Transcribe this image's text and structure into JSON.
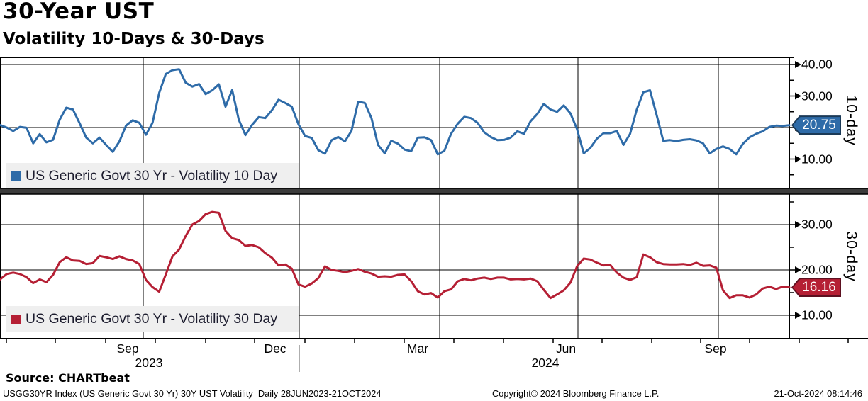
{
  "header": {
    "title": "30-Year UST",
    "subtitle": "Volatility 10-Days & 30-Days"
  },
  "top_panel": {
    "axis_label": "10-day",
    "legend_label": "US Generic Govt 30 Yr - Volatility 10 Day",
    "last_value_label": "20.75",
    "ytick_labels": [
      "40.00",
      "30.00",
      "10.00"
    ]
  },
  "bottom_panel": {
    "axis_label": "30-day",
    "legend_label": "US Generic Govt 30 Yr - Volatility 30 Day",
    "last_value_label": "16.16",
    "ytick_labels": [
      "30.00",
      "20.00",
      "10.00"
    ]
  },
  "xaxis": {
    "month_labels": [
      {
        "label": "Sep",
        "x": 180
      },
      {
        "label": "Dec",
        "x": 388
      },
      {
        "label": "Mar",
        "x": 589
      },
      {
        "label": "Jun",
        "x": 798
      },
      {
        "label": "Sep",
        "x": 1009
      }
    ],
    "year_labels": [
      {
        "label": "2023",
        "x": 210
      },
      {
        "label": "2024",
        "x": 769
      }
    ]
  },
  "footer": {
    "source": "Source: CHARTbeat",
    "ticker_line": "USGG30YR Index (US Generic Govt 30 Yr) 30Y UST Volatility  Daily 28JUN2023-21OCT2024",
    "copyright": "Copyright© 2024 Bloomberg Finance L.P.",
    "timestamp": "21-Oct-2024 08:14:46"
  },
  "colors": {
    "blue": "#2e6ba8",
    "red": "#b51f34",
    "badge_blue_border": "#1b3a57",
    "badge_red_border": "#5c1020",
    "legend_bg": "#efefef",
    "separator": "#3b3b3b",
    "grid": "#000000"
  },
  "grid": {
    "vertical_x": [
      202,
      422,
      620,
      815,
      1013
    ],
    "month_tick_x": [
      9,
      78,
      149,
      219,
      290,
      359,
      430,
      500,
      570,
      640,
      710,
      780,
      849,
      919,
      988,
      1057,
      1127,
      1196
    ],
    "top_major_ticks": [
      40,
      30,
      20,
      10
    ],
    "top_minor_ticks": [
      35,
      25,
      15,
      5
    ],
    "bottom_major_ticks": [
      30,
      20,
      10
    ],
    "bottom_minor_ticks": [
      35,
      25,
      15
    ]
  },
  "chart_data": [
    {
      "type": "line",
      "panel": "top",
      "title": "US Generic Govt 30 Yr - Volatility 10 Day",
      "color": "#2e6ba8",
      "x_range": [
        "28JUN2023",
        "21OCT2024"
      ],
      "ylabel": "10-day",
      "yticks": [
        40,
        30,
        20,
        10
      ],
      "ylim": [
        0,
        42
      ],
      "last": 20.75,
      "values": [
        20.8,
        20.0,
        18.9,
        20.2,
        19.9,
        15.0,
        17.9,
        15.3,
        16.1,
        22.5,
        26.3,
        25.7,
        21.4,
        16.8,
        15.0,
        16.8,
        14.5,
        12.3,
        15.6,
        20.6,
        22.3,
        21.5,
        17.7,
        21.5,
        31.0,
        37.0,
        38.2,
        38.5,
        34.2,
        33.0,
        33.8,
        30.6,
        31.8,
        33.7,
        26.6,
        31.9,
        22.5,
        17.6,
        20.8,
        23.3,
        23.0,
        25.5,
        28.8,
        27.8,
        26.6,
        21.0,
        17.3,
        16.7,
        12.8,
        11.7,
        16.0,
        17.0,
        15.6,
        19.0,
        28.2,
        27.8,
        23.0,
        14.5,
        11.8,
        15.8,
        14.9,
        13.0,
        12.5,
        16.8,
        16.9,
        16.0,
        11.5,
        12.6,
        18.0,
        21.2,
        23.4,
        23.0,
        21.5,
        18.5,
        17.0,
        16.0,
        16.1,
        16.8,
        18.8,
        18.0,
        22.0,
        24.3,
        27.5,
        25.7,
        25.0,
        27.0,
        24.5,
        19.5,
        11.8,
        13.5,
        16.5,
        18.2,
        18.2,
        18.9,
        14.5,
        18.0,
        25.7,
        31.2,
        31.8,
        24.0,
        15.8,
        16.0,
        15.7,
        16.1,
        16.3,
        15.9,
        15.0,
        11.8,
        13.2,
        14.0,
        13.2,
        11.5,
        14.8,
        16.9,
        18.0,
        18.8,
        20.2,
        20.6,
        20.5,
        20.75
      ]
    },
    {
      "type": "line",
      "panel": "bottom",
      "title": "US Generic Govt 30 Yr - Volatility 30 Day",
      "color": "#b51f34",
      "x_range": [
        "28JUN2023",
        "21OCT2024"
      ],
      "ylabel": "30-day",
      "yticks": [
        30,
        20,
        10
      ],
      "ylim": [
        4,
        36
      ],
      "last": 16.16,
      "values": [
        17.9,
        19.1,
        19.4,
        19.1,
        18.4,
        17.1,
        17.9,
        17.3,
        18.9,
        21.7,
        22.8,
        22.1,
        22.0,
        21.3,
        21.5,
        23.1,
        22.8,
        22.4,
        23.0,
        22.4,
        22.1,
        21.3,
        17.8,
        16.2,
        15.2,
        19.0,
        23.0,
        24.5,
        27.5,
        30.0,
        30.8,
        32.3,
        32.8,
        32.6,
        28.6,
        27.0,
        26.6,
        25.3,
        25.5,
        25.0,
        23.7,
        22.7,
        21.0,
        21.2,
        20.3,
        16.8,
        16.3,
        17.0,
        18.2,
        20.8,
        20.0,
        19.8,
        19.5,
        19.8,
        20.2,
        19.6,
        19.2,
        18.5,
        18.6,
        18.5,
        18.9,
        19.0,
        17.5,
        15.3,
        14.6,
        14.9,
        13.9,
        15.3,
        15.7,
        17.5,
        18.0,
        17.7,
        18.1,
        18.3,
        18.0,
        18.3,
        18.3,
        17.9,
        18.0,
        17.9,
        18.1,
        17.5,
        15.6,
        13.8,
        14.6,
        15.5,
        17.2,
        20.8,
        22.5,
        22.3,
        21.6,
        21.0,
        21.1,
        19.4,
        18.3,
        17.8,
        18.4,
        23.4,
        22.8,
        21.7,
        21.3,
        21.2,
        21.2,
        21.3,
        21.1,
        21.6,
        20.9,
        21.0,
        20.5,
        15.5,
        13.8,
        14.4,
        14.4,
        13.9,
        14.6,
        15.9,
        16.3,
        15.8,
        16.3,
        16.16
      ]
    }
  ]
}
